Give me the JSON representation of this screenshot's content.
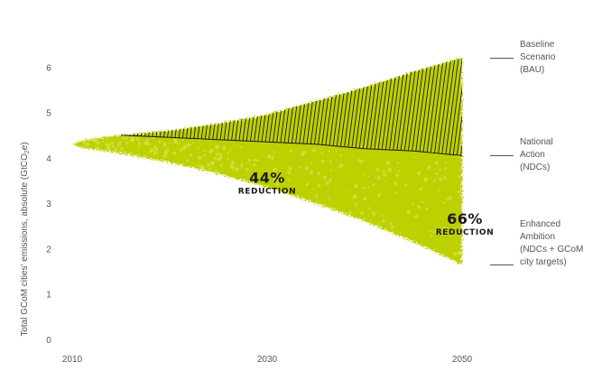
{
  "chart_data": {
    "type": "area",
    "title": "",
    "ylabel_text": "Total GCoM cities' emissions, absolute (GtCO",
    "ylabel_sub": "2",
    "ylabel_end": "e)",
    "xlim": [
      2010,
      2050
    ],
    "ylim": [
      0,
      6.5
    ],
    "x_ticks": [
      "2010",
      "2030",
      "2050"
    ],
    "y_ticks": [
      "0",
      "1",
      "2",
      "3",
      "4",
      "5",
      "6"
    ],
    "grid": false,
    "series": [
      {
        "name": "Baseline Scenario (BAU)",
        "x": [
          2015,
          2020,
          2025,
          2030,
          2035,
          2040,
          2045,
          2050
        ],
        "values": [
          4.5,
          4.6,
          4.75,
          4.95,
          5.25,
          5.55,
          5.9,
          6.2
        ]
      },
      {
        "name": "National Action (NDCs)",
        "x": [
          2010,
          2015,
          2020,
          2025,
          2030,
          2035,
          2040,
          2045,
          2050
        ],
        "values": [
          4.35,
          4.5,
          4.45,
          4.4,
          4.35,
          4.3,
          4.2,
          4.15,
          4.05
        ]
      },
      {
        "name": "Enhanced Ambition (NDCs + GCoM city targets)",
        "x": [
          2010,
          2015,
          2020,
          2025,
          2030,
          2035,
          2040,
          2045,
          2050
        ],
        "values": [
          4.25,
          4.1,
          3.9,
          3.65,
          3.35,
          3.0,
          2.6,
          2.15,
          1.65
        ]
      }
    ],
    "legend": {
      "placement": "right",
      "entries": [
        {
          "lines": [
            "Baseline",
            "Scenario",
            "(BAU)"
          ],
          "value": 6.2
        },
        {
          "lines": [
            "National",
            "Action",
            "(NDCs)"
          ],
          "value": 4.05
        },
        {
          "lines": [
            "Enhanced",
            "Ambition",
            "(NDCs + GCoM",
            "city targets)"
          ],
          "value": 1.65
        }
      ]
    },
    "annotations": [
      {
        "value": "44%",
        "label": "REDUCTION",
        "x": 2030,
        "y": 3.45
      },
      {
        "value": "66%",
        "label": "REDUCTION",
        "x": 2050,
        "y": 2.55
      }
    ],
    "colors": {
      "fill": "#bdd000",
      "fill_speckle": "#d6e34f",
      "hatch": "#1a1a1a",
      "text": "#555555"
    }
  }
}
